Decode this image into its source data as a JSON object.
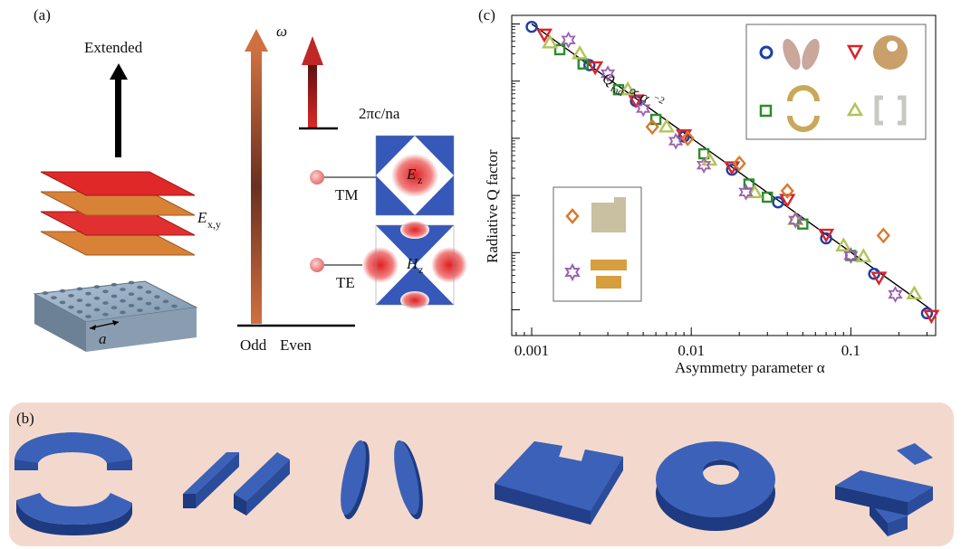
{
  "panel_a": {
    "label": "(a)",
    "extended": "Extended",
    "field_layers": "E",
    "field_layers_sub": "x,y",
    "lattice_const": "a",
    "omega": "ω",
    "light_line": "2πc/na",
    "tm": "TM",
    "te": "TE",
    "ez": "E",
    "ez_sub": "z",
    "hz": "H",
    "hz_sub": "z",
    "odd": "Odd",
    "even": "Even"
  },
  "panel_b": {
    "label": "(b)",
    "shapes": [
      "split-ring",
      "double-bar",
      "double-ellipse",
      "notched-square",
      "off-center-hole-disk",
      "cross"
    ]
  },
  "panel_c": {
    "label": "(c)",
    "annotation_q": "Q",
    "annotation_q_sub": "rad",
    "annotation_rest": " ∝ α",
    "annotation_exp": "−2"
  },
  "chart_data": {
    "type": "scatter",
    "title": "",
    "xlabel": "Asymmetry parameter α",
    "ylabel": "Radiative Q factor",
    "xscale": "log",
    "yscale": "log",
    "xlim": [
      0.00075,
      0.34
    ],
    "x_ticks": [
      "0.001",
      "0.01",
      "0.1"
    ],
    "ylim_decades_log10": [
      -0.45,
      5.15
    ],
    "trend_line": {
      "label": "Q ∝ α^-2",
      "points": [
        [
          0.001,
          5
        ],
        [
          0.32,
          0
        ]
      ]
    },
    "series": [
      {
        "marker": "circle",
        "color": "#1c3fa8",
        "x": [
          0.001,
          0.0023,
          0.0045,
          0.009,
          0.018,
          0.035,
          0.07,
          0.14,
          0.3
        ],
        "y": [
          4.95,
          4.28,
          3.65,
          3.03,
          2.45,
          1.88,
          1.25,
          0.63,
          -0.06
        ]
      },
      {
        "marker": "triangle-down",
        "color": "#d8242a",
        "x": [
          0.0012,
          0.0025,
          0.0045,
          0.009,
          0.018,
          0.04,
          0.07,
          0.15,
          0.32
        ],
        "y": [
          4.82,
          4.25,
          3.67,
          3.06,
          2.5,
          1.93,
          1.32,
          0.57,
          -0.1
        ]
      },
      {
        "marker": "square",
        "color": "#2c8c2c",
        "x": [
          0.0015,
          0.0021,
          0.0035,
          0.006,
          0.012,
          0.023,
          0.03,
          0.05,
          0.1
        ],
        "y": [
          4.55,
          4.3,
          3.85,
          3.33,
          2.73,
          2.2,
          1.97,
          1.5,
          0.95
        ]
      },
      {
        "marker": "triangle-up",
        "color": "#b4c25a",
        "x": [
          0.0013,
          0.002,
          0.004,
          0.007,
          0.013,
          0.025,
          0.045,
          0.09,
          0.12,
          0.25
        ],
        "y": [
          4.67,
          4.48,
          3.85,
          3.2,
          2.62,
          2.05,
          1.58,
          1.12,
          0.93,
          0.28
        ]
      },
      {
        "marker": "diamond",
        "color": "#d97a2e",
        "x": [
          0.0057,
          0.0095,
          0.02,
          0.04,
          0.16
        ],
        "y": [
          3.2,
          3.0,
          2.56,
          2.08,
          1.3
        ]
      },
      {
        "marker": "star",
        "color": "#9b5fb0",
        "x": [
          0.0017,
          0.003,
          0.005,
          0.008,
          0.012,
          0.022,
          0.045,
          0.1,
          0.19
        ],
        "y": [
          4.72,
          4.13,
          3.52,
          2.95,
          2.53,
          2.06,
          1.57,
          0.95,
          0.27
        ]
      }
    ]
  },
  "colors": {
    "panel_b_bg": "#f3d9cd",
    "blue": "#1c3fa8",
    "red": "#d8242a",
    "green": "#2c8c2c",
    "olive": "#b4c25a",
    "orange": "#d97a2e",
    "purple": "#9b5fb0"
  }
}
